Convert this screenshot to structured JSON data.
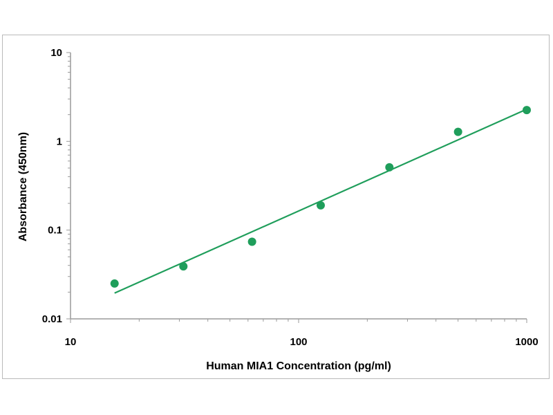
{
  "chart_data": {
    "type": "scatter",
    "title": "",
    "xlabel": "Human MIA1 Concentration (pg/ml)",
    "ylabel": "Absorbance (450nm)",
    "xscale": "log",
    "yscale": "log",
    "xlim": [
      10,
      1000
    ],
    "ylim": [
      0.01,
      10
    ],
    "x_tick_labels": [
      "10",
      "100",
      "1000"
    ],
    "y_tick_labels": [
      "0.01",
      "0.1",
      "1",
      "10"
    ],
    "grid": false,
    "legend": "none",
    "series": [
      {
        "points": [
          {
            "x": 15.6,
            "y": 0.025
          },
          {
            "x": 31.25,
            "y": 0.039
          },
          {
            "x": 62.5,
            "y": 0.074
          },
          {
            "x": 125,
            "y": 0.19
          },
          {
            "x": 250,
            "y": 0.51
          },
          {
            "x": 500,
            "y": 1.28
          },
          {
            "x": 1000,
            "y": 2.25
          }
        ]
      }
    ],
    "fit_line": {
      "x": [
        15.6,
        1000
      ],
      "y": [
        0.0195,
        2.3
      ]
    },
    "colors": {
      "marker": "#1f9e5b",
      "line": "#1f9e5b",
      "axis": "#9a9a9a"
    }
  }
}
